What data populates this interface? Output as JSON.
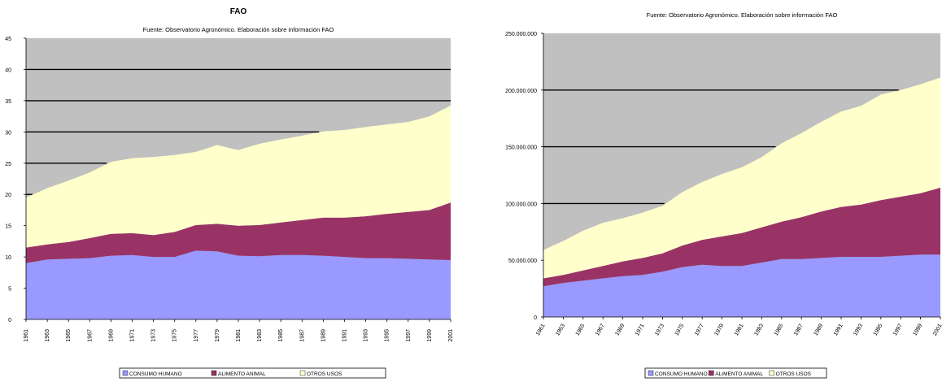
{
  "chart_data": [
    {
      "type": "area",
      "stacked": true,
      "title": "FAO",
      "subtitle": "Fuente: Observatorio Agronómico. Elaboración sobre información FAO",
      "xlabel": "",
      "ylabel": "",
      "ylim": [
        0,
        45
      ],
      "yticks": [
        0,
        5,
        10,
        15,
        20,
        25,
        30,
        35,
        40,
        45
      ],
      "ytick_labels": [
        "0",
        "5",
        "10",
        "15",
        "20",
        "25",
        "30",
        "35",
        "40",
        "45"
      ],
      "x": [
        1961,
        1963,
        1965,
        1967,
        1969,
        1971,
        1973,
        1975,
        1977,
        1979,
        1981,
        1983,
        1985,
        1987,
        1989,
        1991,
        1993,
        1995,
        1997,
        1999,
        2001
      ],
      "x_tick_labels": [
        "1961",
        "1963",
        "1965",
        "1967",
        "1969",
        "1971",
        "1973",
        "1975",
        "1977",
        "1979",
        "1981",
        "1983",
        "1985",
        "1987",
        "1989",
        "1991",
        "1993",
        "1995",
        "1997",
        "1999",
        "2001"
      ],
      "series": [
        {
          "name": "CONSUMO HUMANO",
          "color": "#9999ff",
          "values": [
            9,
            9.6,
            9.7,
            9.8,
            10.2,
            10.3,
            10,
            10,
            11,
            10.9,
            10.2,
            10.1,
            10.3,
            10.3,
            10.2,
            10,
            9.8,
            9.8,
            9.7,
            9.6,
            9.5
          ]
        },
        {
          "name": "ALIMENTO ANIMAL",
          "color": "#993366",
          "values": [
            2.5,
            2.4,
            2.7,
            3.2,
            3.5,
            3.5,
            3.5,
            4.0,
            4.1,
            4.4,
            4.8,
            5.0,
            5.2,
            5.6,
            6.1,
            6.3,
            6.7,
            7.1,
            7.5,
            7.9,
            9.2
          ]
        },
        {
          "name": "OTROS USOS",
          "color": "#ffffcc",
          "values": [
            8,
            9,
            9.8,
            10.5,
            11.5,
            12,
            12.5,
            12.3,
            11.7,
            12.6,
            12.1,
            13,
            13.3,
            13.5,
            13.8,
            14,
            14.3,
            14.3,
            14.4,
            15,
            15.5
          ]
        }
      ],
      "plot_background": "#c0c0c0",
      "gridlines": "horizontal",
      "legend": "bottom",
      "legend_labels": [
        "CONSUMO HUMANO",
        "ALIMENTO ANIMAL",
        "OTROS USOS"
      ]
    },
    {
      "type": "area",
      "stacked": true,
      "title": "",
      "subtitle": "Fuente: Observatorio Agronómico. Elaboración sobre información FAO",
      "xlabel": "",
      "ylabel": "",
      "ylim": [
        0,
        250000000
      ],
      "yticks": [
        0,
        50000000,
        100000000,
        150000000,
        200000000,
        250000000
      ],
      "ytick_labels": [
        "0",
        "50.000.000",
        "100.000.000",
        "150.000.000",
        "200.000.000",
        "250.000.000"
      ],
      "x": [
        1961,
        1963,
        1965,
        1967,
        1969,
        1971,
        1973,
        1975,
        1977,
        1979,
        1981,
        1983,
        1985,
        1987,
        1989,
        1991,
        1993,
        1995,
        1997,
        1999,
        2001
      ],
      "x_tick_labels": [
        "1961",
        "1963",
        "1965",
        "1967",
        "1969",
        "1971",
        "1973",
        "1975",
        "1977",
        "1979",
        "1981",
        "1983",
        "1985",
        "1987",
        "1989",
        "1991",
        "1993",
        "1995",
        "1997",
        "1999",
        "2001"
      ],
      "series": [
        {
          "name": "CONSUMO HUMANO",
          "color": "#9999ff",
          "values": [
            27000000,
            30000000,
            32000000,
            34000000,
            36000000,
            37000000,
            40000000,
            44000000,
            46000000,
            45000000,
            45000000,
            48000000,
            51000000,
            51000000,
            52000000,
            53000000,
            53000000,
            53000000,
            54000000,
            55000000,
            55000000
          ]
        },
        {
          "name": "ALIMENTO ANIMAL",
          "color": "#993366",
          "values": [
            7000000,
            7000000,
            9000000,
            11000000,
            13000000,
            15000000,
            16000000,
            19000000,
            22000000,
            26000000,
            29000000,
            31000000,
            33000000,
            37000000,
            41000000,
            44000000,
            46000000,
            50000000,
            52000000,
            54000000,
            59000000
          ]
        },
        {
          "name": "OTROS USOS",
          "color": "#ffffcc",
          "values": [
            25000000,
            30000000,
            35000000,
            38000000,
            38000000,
            40000000,
            42000000,
            47000000,
            51000000,
            55000000,
            58000000,
            62000000,
            69000000,
            74000000,
            79000000,
            84000000,
            87000000,
            93000000,
            94000000,
            96000000,
            97000000
          ]
        }
      ],
      "plot_background": "#c0c0c0",
      "gridlines": "horizontal",
      "legend": "bottom",
      "legend_labels": [
        "CONSUMO HUMANO",
        "ALIMENTO ANIMAL",
        "OTROS USOS"
      ]
    }
  ]
}
